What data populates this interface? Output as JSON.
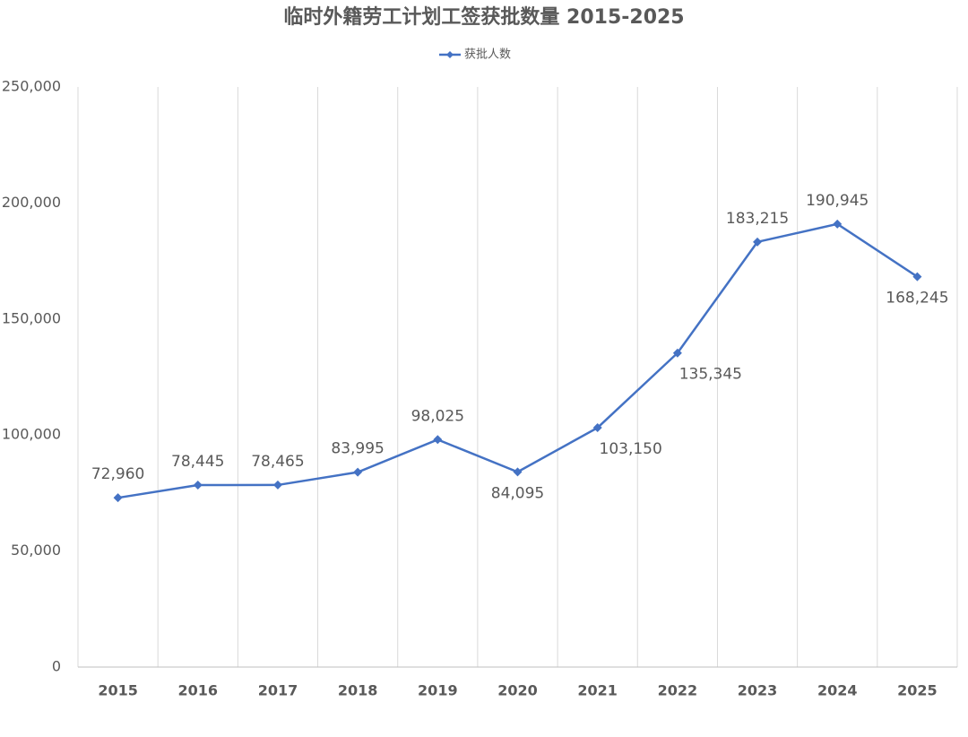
{
  "chart_data": {
    "type": "line",
    "title": "临时外籍劳工计划工签获批数量 2015-2025",
    "categories": [
      "2015",
      "2016",
      "2017",
      "2018",
      "2019",
      "2020",
      "2021",
      "2022",
      "2023",
      "2024",
      "2025"
    ],
    "series": [
      {
        "name": "获批人数",
        "color": "#4472c4",
        "values": [
          72960,
          78445,
          78465,
          83995,
          98025,
          84095,
          103150,
          135345,
          183215,
          190945,
          168245
        ],
        "value_labels": [
          "72,960",
          "78,445",
          "78,465",
          "83,995",
          "98,025",
          "84,095",
          "103,150",
          "135,345",
          "183,215",
          "190,945",
          "168,245"
        ]
      }
    ],
    "ylim": [
      0,
      250000
    ],
    "yticks": [
      0,
      {
        "value": 50000,
        "label": "50,000"
      },
      {
        "value": 100000,
        "label": "100,000"
      },
      {
        "value": 150000,
        "label": "150,000"
      },
      {
        "value": 200000,
        "label": "200,000"
      },
      {
        "value": 250000,
        "label": "250,000"
      }
    ],
    "legend": "top"
  }
}
